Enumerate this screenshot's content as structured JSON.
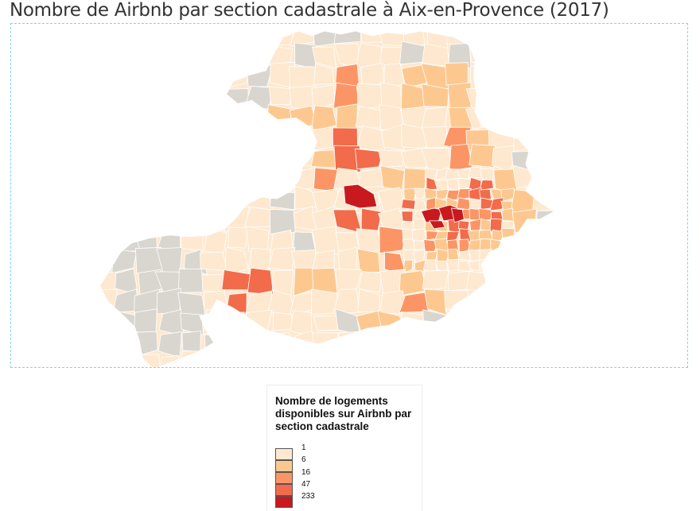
{
  "title": "Nombre de Airbnb par section cadastrale à Aix-en-Provence (2017)",
  "colors": {
    "no_data": "#d9d6d0",
    "class_1": "#fee8cf",
    "class_2": "#fdc88f",
    "class_3": "#fc9565",
    "class_4": "#f26b4b",
    "class_5": "#c8191f",
    "border": "#ffffff",
    "frame": "#7fd3ee"
  },
  "legend": {
    "title": "Nombre de logements disponibles sur Airbnb par section cadastrale",
    "items": [
      {
        "label": "1",
        "color": "#fee8cf"
      },
      {
        "label": "6",
        "color": "#fdc88f"
      },
      {
        "label": "16",
        "color": "#fc9565"
      },
      {
        "label": "47",
        "color": "#f26b4b"
      },
      {
        "label": "233",
        "color": "#c8191f"
      }
    ]
  }
}
